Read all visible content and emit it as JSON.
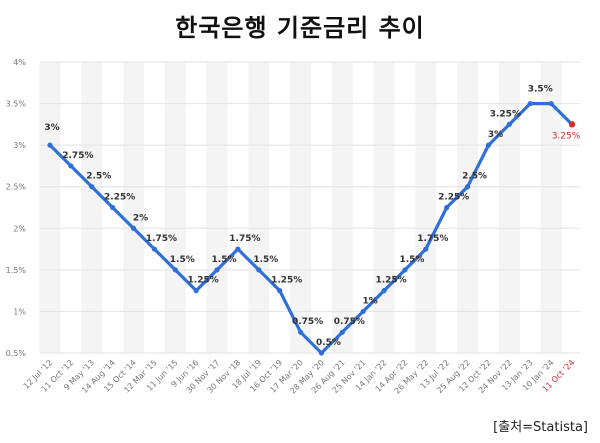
{
  "chart_data": {
    "type": "line",
    "title": "한국은행 기준금리 추이",
    "source": "[출처=Statista]",
    "x": [
      "12 Jul '12",
      "11 Oct '12",
      "9 May '13",
      "14 Aug '14",
      "15 Oct '14",
      "12 Mar '15",
      "11 Jun '15",
      "9 Jun '16",
      "30 Nov '17",
      "30 Nov '18",
      "18 Jul '19",
      "16 Oct '19",
      "17 Mar '20",
      "28 May '20",
      "26 Aug '21",
      "25 Nov '21",
      "14 Jan '22",
      "14 Apr '22",
      "26 May '22",
      "13 Jul '22",
      "25 Aug '22",
      "12 Oct '22",
      "24 Nov '22",
      "13 Jan '23",
      "10 Jan '24",
      "11 Oct '24"
    ],
    "series": [
      {
        "values": [
          3,
          2.75,
          2.5,
          2.25,
          2,
          1.75,
          1.5,
          1.25,
          1.5,
          1.75,
          1.5,
          1.25,
          0.75,
          0.5,
          0.75,
          1,
          1.25,
          1.5,
          1.75,
          2.25,
          2.5,
          3,
          3.25,
          3.5,
          3.5,
          3.25
        ],
        "labels": [
          "3%",
          "2.75%",
          "2.5%",
          "2.25%",
          "2%",
          "1.75%",
          "1.5%",
          "1.25%",
          "1.5%",
          "1.75%",
          "1.5%",
          "1.25%",
          "0.75%",
          "0.5%",
          "0.75%",
          "1%",
          "1.25%",
          "1.5%",
          "1.75%",
          "2.25%",
          "2.5%",
          "3%",
          "3.25%",
          "3.5%",
          "",
          "3.25%"
        ],
        "color": "#2f6fd8"
      }
    ],
    "highlight_color": "#d32f2f",
    "highlight_index": 25,
    "y_ticks": [
      "0.5%",
      "1%",
      "1.5%",
      "2%",
      "2.5%",
      "3%",
      "3.5%",
      "4%"
    ],
    "ylim": [
      0.5,
      4
    ],
    "grid": true
  }
}
